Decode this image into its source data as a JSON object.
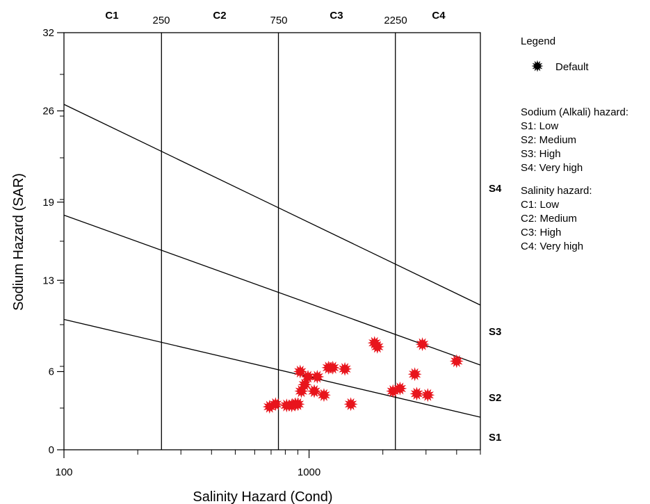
{
  "chart_data": {
    "type": "scatter",
    "x_scale": "log",
    "xlim": [
      100,
      5000
    ],
    "ylim": [
      0,
      32
    ],
    "xlabel": "Salinity Hazard (Cond)",
    "ylabel": "Sodium Hazard (SAR)",
    "x_ticks": [
      100,
      1000
    ],
    "y_ticks": [
      0,
      6,
      13,
      19,
      26,
      32
    ],
    "grid": false,
    "salinity_boundaries": [
      {
        "value": 250,
        "label": "250"
      },
      {
        "value": 750,
        "label": "750"
      },
      {
        "value": 2250,
        "label": "2250"
      }
    ],
    "salinity_classes": [
      "C1",
      "C2",
      "C3",
      "C4"
    ],
    "sodium_classes": [
      "S1",
      "S2",
      "S3",
      "S4"
    ],
    "sodium_boundary_lines": [
      {
        "x": [
          100,
          5000
        ],
        "y": [
          10.0,
          2.5
        ]
      },
      {
        "x": [
          100,
          5000
        ],
        "y": [
          18.0,
          6.5
        ]
      },
      {
        "x": [
          100,
          5000
        ],
        "y": [
          26.5,
          11.1
        ]
      }
    ],
    "series": [
      {
        "name": "Default",
        "color": "#e8141c",
        "points": [
          {
            "x": 690,
            "y": 3.3
          },
          {
            "x": 730,
            "y": 3.5
          },
          {
            "x": 810,
            "y": 3.4
          },
          {
            "x": 850,
            "y": 3.4
          },
          {
            "x": 880,
            "y": 3.5
          },
          {
            "x": 900,
            "y": 3.5
          },
          {
            "x": 920,
            "y": 6.0
          },
          {
            "x": 930,
            "y": 4.5
          },
          {
            "x": 960,
            "y": 5.0
          },
          {
            "x": 990,
            "y": 5.6
          },
          {
            "x": 1050,
            "y": 4.5
          },
          {
            "x": 1080,
            "y": 5.6
          },
          {
            "x": 1150,
            "y": 4.2
          },
          {
            "x": 1200,
            "y": 6.3
          },
          {
            "x": 1250,
            "y": 6.3
          },
          {
            "x": 1400,
            "y": 6.2
          },
          {
            "x": 1480,
            "y": 3.5
          },
          {
            "x": 1850,
            "y": 8.2
          },
          {
            "x": 1900,
            "y": 7.9
          },
          {
            "x": 2200,
            "y": 4.5
          },
          {
            "x": 2350,
            "y": 4.7
          },
          {
            "x": 2700,
            "y": 5.8
          },
          {
            "x": 2750,
            "y": 4.3
          },
          {
            "x": 2900,
            "y": 8.1
          },
          {
            "x": 3050,
            "y": 4.2
          },
          {
            "x": 4000,
            "y": 6.8
          }
        ]
      }
    ],
    "legend": {
      "title": "Legend",
      "position": "right",
      "entries": [
        "Default"
      ],
      "sodium_title": "Sodium (Alkali) hazard:",
      "sodium_items": [
        "S1: Low",
        "S2: Medium",
        "S3: High",
        "S4: Very high"
      ],
      "salinity_title": "Salinity hazard:",
      "salinity_items": [
        "C1: Low",
        "C2: Medium",
        "C3: High",
        "C4: Very high"
      ]
    }
  }
}
